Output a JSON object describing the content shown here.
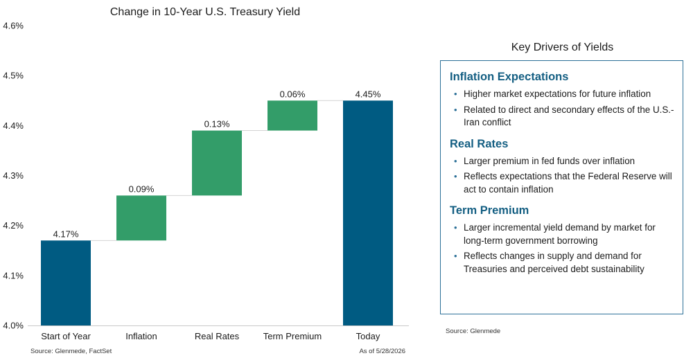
{
  "chart_data": {
    "type": "waterfall",
    "title": "Change in 10-Year U.S. Treasury Yield",
    "categories": [
      "Start of Year",
      "Inflation",
      "Real Rates",
      "Term Premium",
      "Today"
    ],
    "values": [
      4.17,
      0.09,
      0.13,
      0.06,
      4.45
    ],
    "bar_kinds": [
      "total",
      "delta",
      "delta",
      "delta",
      "total"
    ],
    "data_labels": [
      "4.17%",
      "0.09%",
      "0.13%",
      "0.06%",
      "4.45%"
    ],
    "ylim": [
      4.0,
      4.6
    ],
    "yticks": [
      4.0,
      4.1,
      4.2,
      4.3,
      4.4,
      4.5,
      4.6
    ],
    "ytick_labels": [
      "4.0%",
      "4.1%",
      "4.2%",
      "4.3%",
      "4.4%",
      "4.5%",
      "4.6%"
    ],
    "colors": {
      "total": "#005b82",
      "delta": "#339d69",
      "connector": "#d3d3d3",
      "axis": "#c8c8c8"
    },
    "grid": false,
    "source": "Source: Glenmede, FactSet",
    "as_of": "As of 5/28/2026"
  },
  "panel": {
    "title": "Key Drivers of Yields",
    "sections": [
      {
        "heading": "Inflation Expectations",
        "bullets": [
          "Higher market expectations for future inflation",
          "Related to direct and secondary effects of the U.S.-Iran conflict"
        ]
      },
      {
        "heading": "Real Rates",
        "bullets": [
          "Larger premium in fed funds over inflation",
          "Reflects expectations that the Federal Reserve will act to contain inflation"
        ]
      },
      {
        "heading": "Term Premium",
        "bullets": [
          "Larger incremental yield demand by market for long-term government borrowing",
          "Reflects changes in supply and demand for Treasuries and perceived debt sustainability"
        ]
      }
    ],
    "source": "Source: Glenmede",
    "bullet_glyph": "•",
    "border_color": "#2a6f97",
    "heading_color": "#135e82"
  }
}
